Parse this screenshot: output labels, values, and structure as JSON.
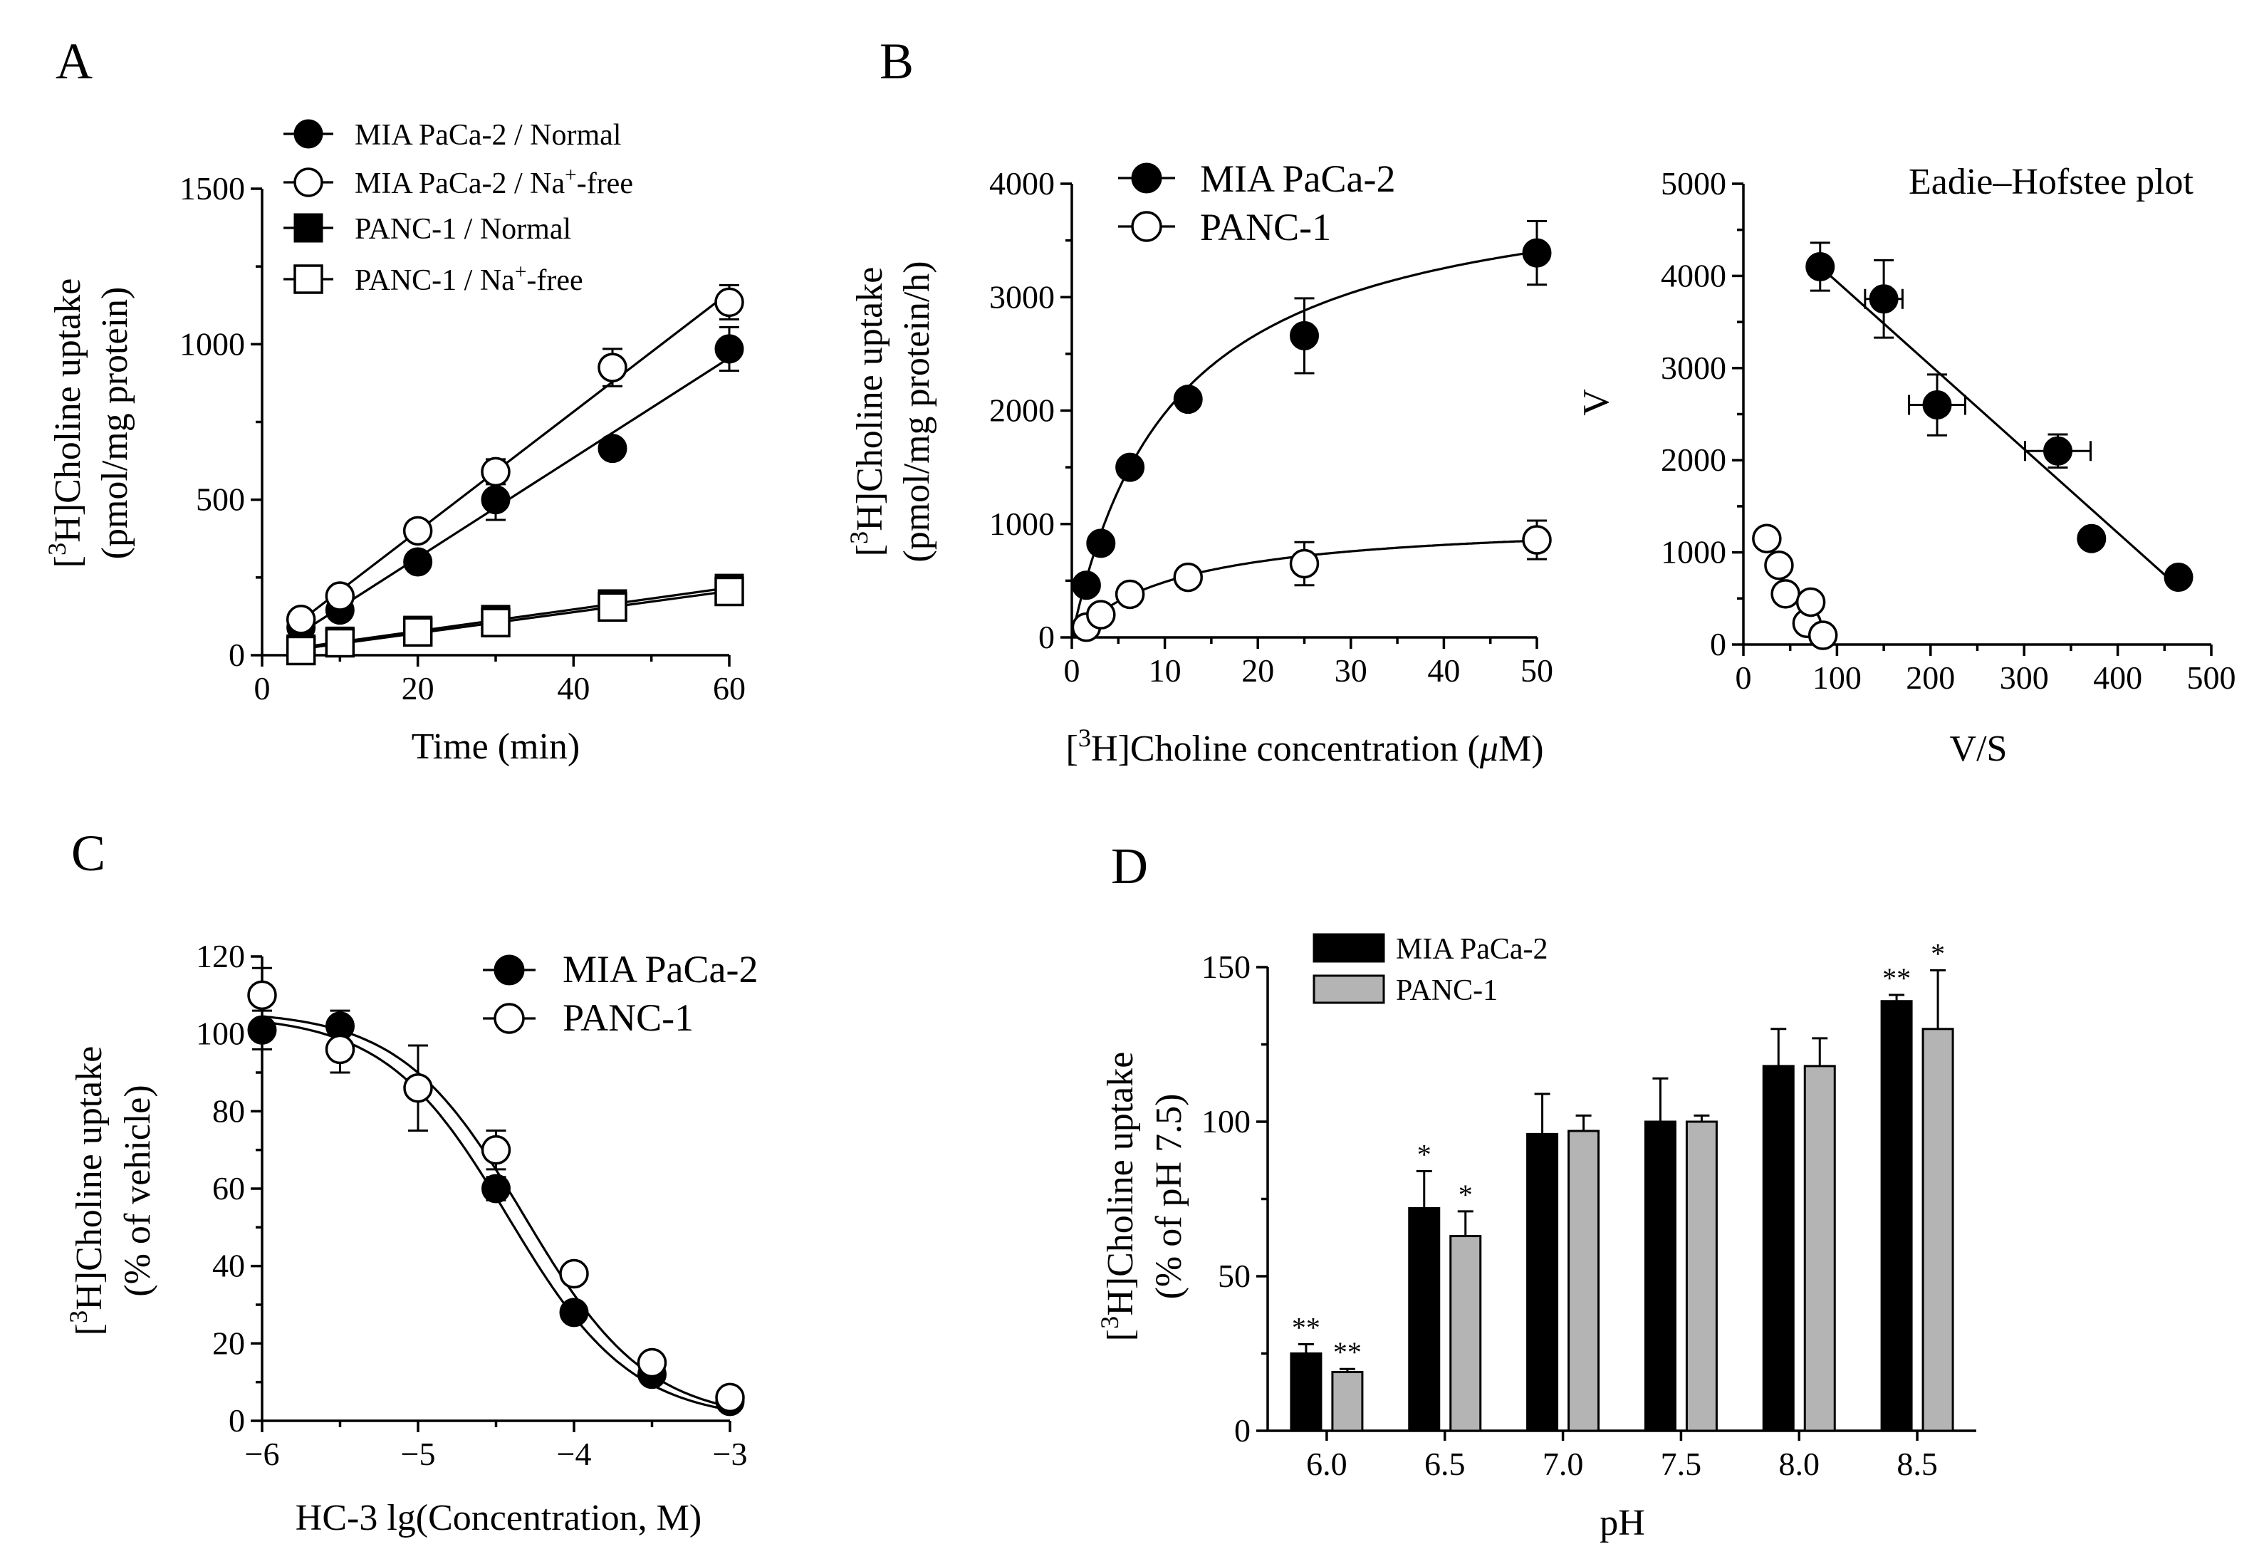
{
  "labels": {
    "A": "A",
    "B": "B",
    "C": "C",
    "D": "D"
  },
  "chart_data": [
    {
      "panel": "A",
      "type": "line",
      "xlabel": "Time (min)",
      "ylabel_line1": "[3H]Choline uptake",
      "ylabel_line2": "(pmol/mg protein)",
      "xlim": [
        0,
        60
      ],
      "ylim": [
        0,
        1500
      ],
      "xticks": [
        "0",
        "20",
        "40",
        "60"
      ],
      "yticks": [
        "0",
        "500",
        "1000",
        "1500"
      ],
      "legend_position": "top-left",
      "series": [
        {
          "name": "MIA PaCa-2 / Normal",
          "marker": "filled-circle",
          "x": [
            5,
            10,
            20,
            30,
            45,
            60
          ],
          "y": [
            90,
            145,
            300,
            500,
            665,
            985
          ],
          "err": [
            15,
            20,
            25,
            65,
            25,
            70
          ]
        },
        {
          "name": "MIA PaCa-2 / Na+-free",
          "marker": "open-circle",
          "x": [
            5,
            10,
            20,
            30,
            45,
            60
          ],
          "y": [
            115,
            190,
            400,
            590,
            925,
            1135
          ],
          "err": [
            15,
            20,
            25,
            40,
            60,
            55
          ]
        },
        {
          "name": "PANC-1 / Normal",
          "marker": "filled-square",
          "x": [
            5,
            10,
            20,
            30,
            45,
            60
          ],
          "y": [
            20,
            45,
            80,
            115,
            165,
            215
          ],
          "err": [
            8,
            10,
            12,
            15,
            20,
            20
          ]
        },
        {
          "name": "PANC-1 / Na+-free",
          "marker": "open-square",
          "x": [
            5,
            10,
            20,
            30,
            45,
            60
          ],
          "y": [
            15,
            40,
            75,
            105,
            155,
            205
          ],
          "err": [
            8,
            10,
            12,
            15,
            20,
            20
          ]
        }
      ]
    },
    {
      "panel": "B",
      "type": "scatter",
      "xlabel": "[3H]Choline concentration (μM)",
      "ylabel_line1": "[3H]Choline uptake",
      "ylabel_line2": "(pmol/mg protein/h)",
      "xlim": [
        0,
        50
      ],
      "ylim": [
        0,
        4000
      ],
      "xticks": [
        "0",
        "10",
        "20",
        "30",
        "40",
        "50"
      ],
      "yticks": [
        "0",
        "1000",
        "2000",
        "3000",
        "4000"
      ],
      "legend_position": "top-left",
      "series": [
        {
          "name": "MIA PaCa-2",
          "marker": "filled-circle",
          "x": [
            1.5625,
            3.125,
            6.25,
            12.5,
            25,
            50
          ],
          "y": [
            460,
            830,
            1500,
            2100,
            2660,
            3390
          ],
          "err": [
            30,
            40,
            50,
            60,
            330,
            280
          ]
        },
        {
          "name": "PANC-1",
          "marker": "open-circle",
          "x": [
            1.5625,
            3.125,
            6.25,
            12.5,
            25,
            50
          ],
          "y": [
            90,
            200,
            380,
            530,
            650,
            860
          ],
          "err": [
            20,
            30,
            40,
            60,
            190,
            170
          ]
        }
      ]
    },
    {
      "panel": "B-inset",
      "type": "scatter",
      "title": "Eadie–Hofstee plot",
      "xlabel": "V/S",
      "ylabel": "V",
      "xlim": [
        0,
        500
      ],
      "ylim": [
        0,
        5000
      ],
      "xticks": [
        "0",
        "100",
        "200",
        "300",
        "400",
        "500"
      ],
      "yticks": [
        "0",
        "1000",
        "2000",
        "3000",
        "4000",
        "5000"
      ],
      "series": [
        {
          "name": "MIA PaCa-2",
          "marker": "filled-circle",
          "x": [
            82,
            150,
            207,
            336,
            372,
            465
          ],
          "y": [
            4100,
            3750,
            2600,
            2100,
            1150,
            730
          ],
          "xerr": [
            0,
            20,
            30,
            35,
            0,
            0
          ],
          "yerr": [
            260,
            420,
            330,
            180,
            0,
            0
          ]
        },
        {
          "name": "PANC-1",
          "marker": "open-circle",
          "x": [
            25,
            38,
            45,
            68,
            72,
            85
          ],
          "y": [
            1150,
            860,
            550,
            230,
            460,
            100
          ],
          "xerr": [
            0,
            0,
            0,
            0,
            0,
            0
          ],
          "yerr": [
            0,
            0,
            0,
            0,
            0,
            0
          ]
        }
      ]
    },
    {
      "panel": "C",
      "type": "line",
      "xlabel": "HC-3 lg(Concentration, M)",
      "ylabel_line1": "[3H]Choline uptake",
      "ylabel_line2": "(% of vehicle)",
      "xlim": [
        -6,
        -3
      ],
      "ylim": [
        0,
        120
      ],
      "xticks": [
        "-6",
        "-5",
        "-4",
        "-3"
      ],
      "yticks": [
        "0",
        "20",
        "40",
        "60",
        "80",
        "100",
        "120"
      ],
      "legend_position": "top-right",
      "series": [
        {
          "name": "MIA PaCa-2",
          "marker": "filled-circle",
          "x": [
            -6,
            -5.5,
            -5,
            -4.5,
            -4,
            -3.5,
            -3
          ],
          "y": [
            101,
            102,
            86,
            60,
            28,
            12,
            5
          ],
          "err": [
            5,
            4,
            11,
            3,
            2,
            2,
            2
          ]
        },
        {
          "name": "PANC-1",
          "marker": "open-circle",
          "x": [
            -6,
            -5.5,
            -5,
            -4.5,
            -4,
            -3.5,
            -3
          ],
          "y": [
            110,
            96,
            86,
            70,
            38,
            15,
            6
          ],
          "err": [
            7,
            6,
            11,
            5,
            2,
            2,
            2
          ]
        }
      ]
    },
    {
      "panel": "D",
      "type": "bar",
      "xlabel": "pH",
      "ylabel_line1": "[3H]Choline uptake",
      "ylabel_line2": "(% of pH 7.5)",
      "categories": [
        "6.0",
        "6.5",
        "7.0",
        "7.5",
        "8.0",
        "8.5"
      ],
      "ylim": [
        0,
        150
      ],
      "yticks": [
        "0",
        "50",
        "100",
        "150"
      ],
      "legend_position": "top-left",
      "series": [
        {
          "name": "MIA PaCa-2",
          "color": "#000000",
          "values": [
            25,
            72,
            96,
            100,
            118,
            139
          ],
          "err": [
            3,
            12,
            13,
            14,
            12,
            2
          ],
          "sig": [
            "**",
            "*",
            "",
            "",
            "",
            "**"
          ]
        },
        {
          "name": "PANC-1",
          "color": "#b4b4b4",
          "values": [
            19,
            63,
            97,
            100,
            118,
            130
          ],
          "err": [
            1,
            8,
            5,
            2,
            9,
            19
          ],
          "sig": [
            "**",
            "*",
            "",
            "",
            "",
            "*"
          ]
        }
      ]
    }
  ]
}
